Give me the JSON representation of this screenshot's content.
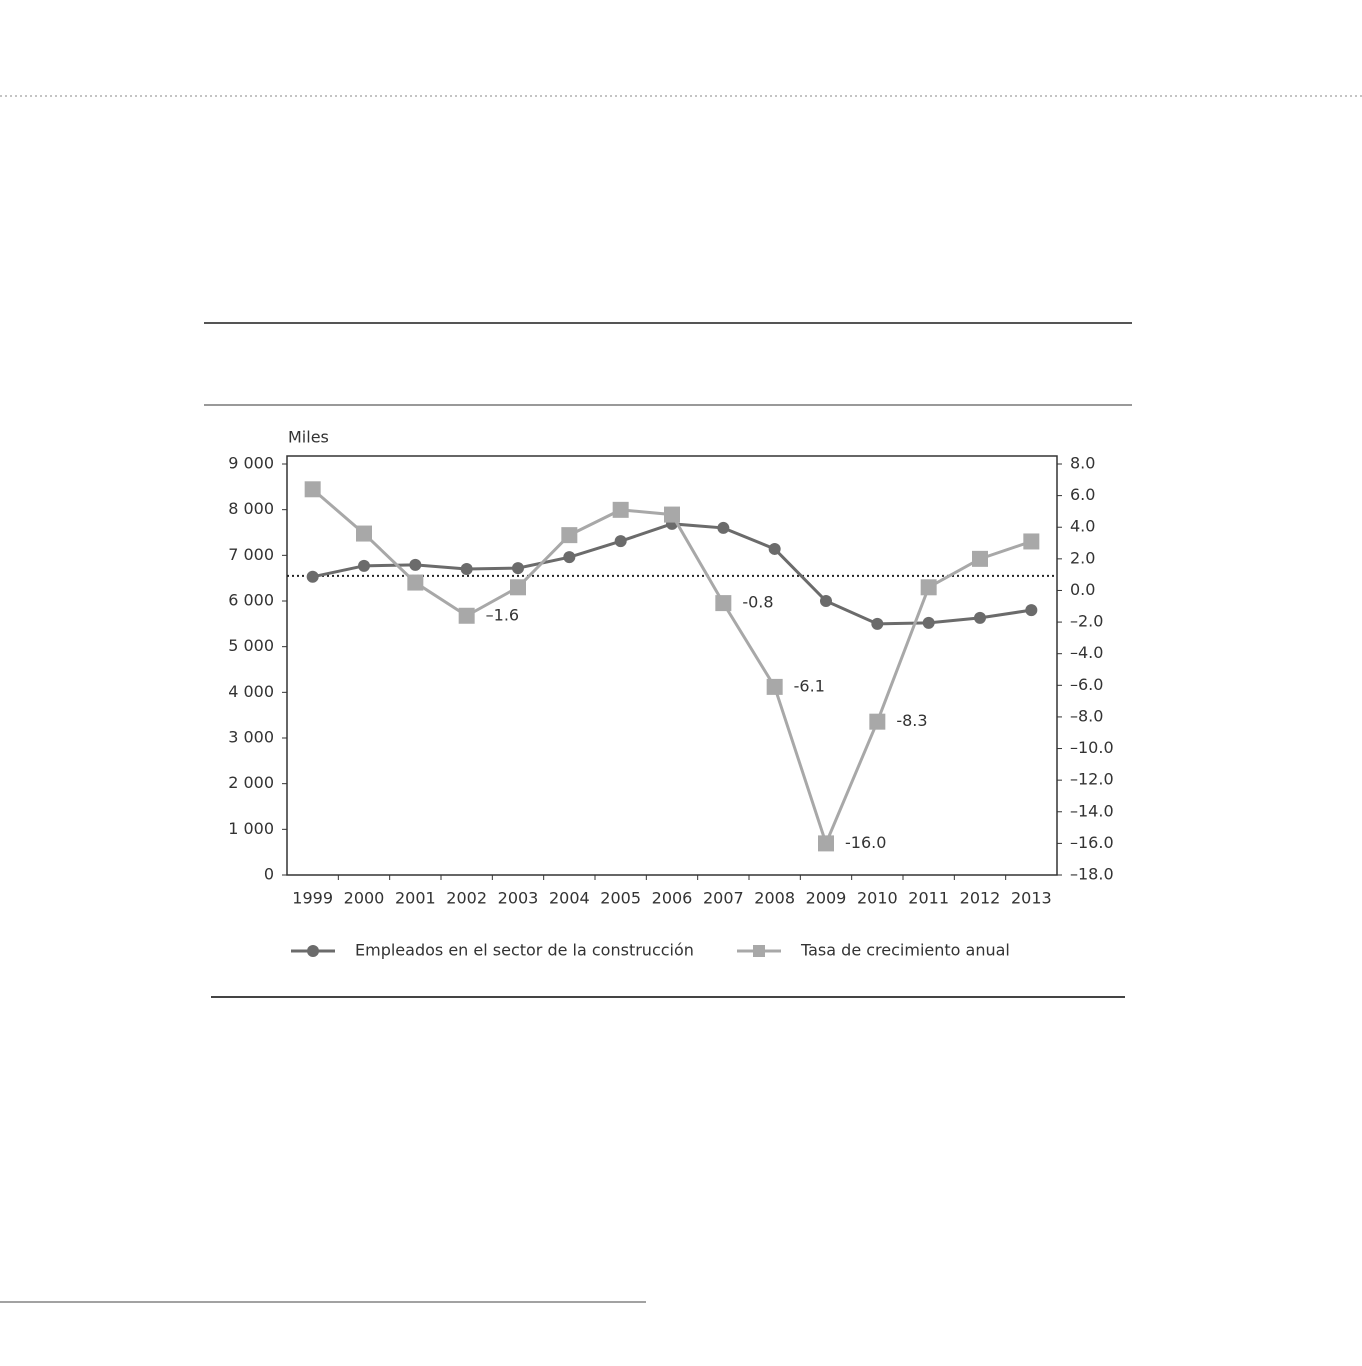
{
  "chart_data": {
    "type": "line",
    "y_axis_label": "Miles",
    "categories": [
      "1999",
      "2000",
      "2001",
      "2002",
      "2003",
      "2004",
      "2005",
      "2006",
      "2007",
      "2008",
      "2009",
      "2010",
      "2011",
      "2012",
      "2013"
    ],
    "series": [
      {
        "name": "Empleados en el sector de la construcción",
        "color": "#6b6b6b",
        "marker": "circle",
        "values": [
          6530,
          6770,
          6790,
          6700,
          6720,
          6960,
          7310,
          7690,
          7600,
          7140,
          6000,
          5500,
          5520,
          5630,
          5800
        ]
      },
      {
        "name": "Tasa de crecimiento anual",
        "color": "#a8a8a8",
        "marker": "square",
        "axis": "y2",
        "values": [
          6.4,
          3.6,
          0.5,
          -1.6,
          0.2,
          3.5,
          5.1,
          4.8,
          -0.8,
          -6.1,
          -16.0,
          -8.3,
          0.2,
          2.0,
          3.1
        ],
        "value_labels": [
          null,
          null,
          null,
          "–1.6",
          null,
          null,
          null,
          null,
          "-0.8",
          "-6.1",
          "-16.0",
          "-8.3",
          null,
          null,
          null
        ]
      }
    ],
    "ylim": [
      0,
      9000
    ],
    "yticks": [
      0,
      {
        "value": 1000,
        "label": "1 000"
      },
      {
        "value": 2000,
        "label": "2 000"
      },
      {
        "value": 3000,
        "label": "3 000"
      },
      {
        "value": 4000,
        "label": "4 000"
      },
      {
        "value": 5000,
        "label": "5 000"
      },
      {
        "value": 6000,
        "label": "6 000"
      },
      {
        "value": 7000,
        "label": "7 000"
      },
      {
        "value": 8000,
        "label": "8 000"
      },
      {
        "value": 9000,
        "label": "9 000"
      }
    ],
    "y2lim": [
      -18,
      8
    ],
    "y2ticks": [
      {
        "value": -18,
        "label": "–18.0"
      },
      {
        "value": -16,
        "label": "–16.0"
      },
      {
        "value": -14,
        "label": "–14.0"
      },
      {
        "value": -12,
        "label": "–12.0"
      },
      {
        "value": -10,
        "label": "–10.0"
      },
      {
        "value": -8,
        "label": "–8.0"
      },
      {
        "value": -6,
        "label": "–6.0"
      },
      {
        "value": -4,
        "label": "–4.0"
      },
      {
        "value": -2,
        "label": "–2.0"
      },
      {
        "value": 0,
        "label": "0.0"
      },
      {
        "value": 2,
        "label": "2.0"
      },
      {
        "value": 4,
        "label": "4.0"
      },
      {
        "value": 6,
        "label": "6.0"
      },
      {
        "value": 8,
        "label": "8.0"
      }
    ],
    "reference_line": 6550,
    "grid": false
  }
}
